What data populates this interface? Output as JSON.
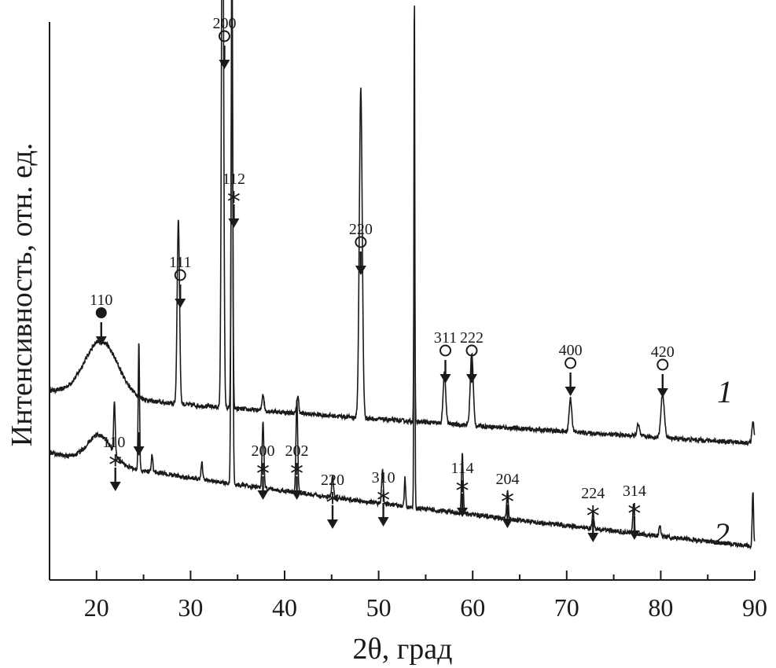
{
  "chart_data": {
    "type": "line",
    "xlabel": "2θ, град",
    "ylabel": "Интенсивность, отн. ед.",
    "xlim": [
      15,
      90
    ],
    "x_ticks": [
      "20",
      "30",
      "40",
      "50",
      "60",
      "70",
      "80",
      "90"
    ],
    "legend_symbols": {
      "filled_circle": "●",
      "open_circle": "○",
      "asterisk": "*"
    },
    "series": [
      {
        "name": "1",
        "baseline_start": 0.34,
        "baseline_end": 0.245,
        "hump": {
          "x": 20.5,
          "height": 0.1,
          "width": 2.5
        },
        "peaks": [
          {
            "x": 28.7,
            "h": 0.33,
            "w": 0.18
          },
          {
            "x": 33.4,
            "h": 1.07,
            "w": 0.16
          },
          {
            "x": 34.4,
            "h": 0.7,
            "w": 0.12
          },
          {
            "x": 37.7,
            "h": 0.03,
            "w": 0.15
          },
          {
            "x": 41.4,
            "h": 0.03,
            "w": 0.15
          },
          {
            "x": 48.1,
            "h": 0.59,
            "w": 0.22
          },
          {
            "x": 53.8,
            "h": 0.36,
            "w": 0.08
          },
          {
            "x": 57.0,
            "h": 0.09,
            "w": 0.2
          },
          {
            "x": 59.9,
            "h": 0.13,
            "w": 0.22
          },
          {
            "x": 70.4,
            "h": 0.06,
            "w": 0.2
          },
          {
            "x": 77.6,
            "h": 0.02,
            "w": 0.2
          },
          {
            "x": 80.2,
            "h": 0.08,
            "w": 0.25
          },
          {
            "x": 89.8,
            "h": 0.04,
            "w": 0.15
          }
        ]
      },
      {
        "name": "2",
        "baseline_start": 0.23,
        "baseline_end": 0.06,
        "hump": {
          "x": 20.3,
          "height": 0.05,
          "width": 1.8
        },
        "peaks": [
          {
            "x": 21.9,
            "h": 0.09,
            "w": 0.12
          },
          {
            "x": 24.5,
            "h": 0.23,
            "w": 0.1
          },
          {
            "x": 25.9,
            "h": 0.03,
            "w": 0.12
          },
          {
            "x": 31.2,
            "h": 0.03,
            "w": 0.12
          },
          {
            "x": 34.4,
            "h": 1.0,
            "w": 0.12
          },
          {
            "x": 37.7,
            "h": 0.12,
            "w": 0.13
          },
          {
            "x": 41.3,
            "h": 0.17,
            "w": 0.13
          },
          {
            "x": 45.1,
            "h": 0.04,
            "w": 0.13
          },
          {
            "x": 50.4,
            "h": 0.06,
            "w": 0.12
          },
          {
            "x": 52.8,
            "h": 0.05,
            "w": 0.1
          },
          {
            "x": 53.8,
            "h": 0.94,
            "w": 0.07
          },
          {
            "x": 58.9,
            "h": 0.11,
            "w": 0.12
          },
          {
            "x": 63.7,
            "h": 0.05,
            "w": 0.12
          },
          {
            "x": 72.8,
            "h": 0.03,
            "w": 0.12
          },
          {
            "x": 77.1,
            "h": 0.05,
            "w": 0.12
          },
          {
            "x": 79.9,
            "h": 0.02,
            "w": 0.12
          },
          {
            "x": 89.8,
            "h": 0.1,
            "w": 0.1
          }
        ]
      }
    ],
    "annotations": [
      {
        "series": "1",
        "x": 20.5,
        "label": "110",
        "marker": "filled_circle"
      },
      {
        "series": "1",
        "x": 28.9,
        "label": "111",
        "marker": "open_circle"
      },
      {
        "series": "1",
        "x": 33.6,
        "label": "200",
        "marker": "open_circle"
      },
      {
        "series": "1",
        "x": 34.6,
        "label": "112",
        "marker": "asterisk"
      },
      {
        "series": "1",
        "x": 48.1,
        "label": "220",
        "marker": "open_circle"
      },
      {
        "series": "1",
        "x": 57.1,
        "label": "311",
        "marker": "open_circle"
      },
      {
        "series": "1",
        "x": 59.9,
        "label": "222",
        "marker": "open_circle"
      },
      {
        "series": "1",
        "x": 70.4,
        "label": "400",
        "marker": "open_circle"
      },
      {
        "series": "1",
        "x": 80.2,
        "label": "420",
        "marker": "open_circle"
      },
      {
        "series": "2",
        "x": 22.0,
        "label": "110",
        "marker": "asterisk"
      },
      {
        "series": "2",
        "x": 24.5,
        "label": "",
        "marker": "none"
      },
      {
        "series": "2",
        "x": 37.7,
        "label": "200",
        "marker": "asterisk"
      },
      {
        "series": "2",
        "x": 41.3,
        "label": "202",
        "marker": "asterisk"
      },
      {
        "series": "2",
        "x": 45.1,
        "label": "220",
        "marker": "asterisk"
      },
      {
        "series": "2",
        "x": 50.5,
        "label": "310",
        "marker": "asterisk"
      },
      {
        "series": "2",
        "x": 58.9,
        "label": "114",
        "marker": "asterisk"
      },
      {
        "series": "2",
        "x": 63.7,
        "label": "204",
        "marker": "asterisk"
      },
      {
        "series": "2",
        "x": 72.8,
        "label": "224",
        "marker": "asterisk"
      },
      {
        "series": "2",
        "x": 77.2,
        "label": "314",
        "marker": "asterisk"
      }
    ],
    "curve_labels": [
      "1",
      "2"
    ]
  }
}
